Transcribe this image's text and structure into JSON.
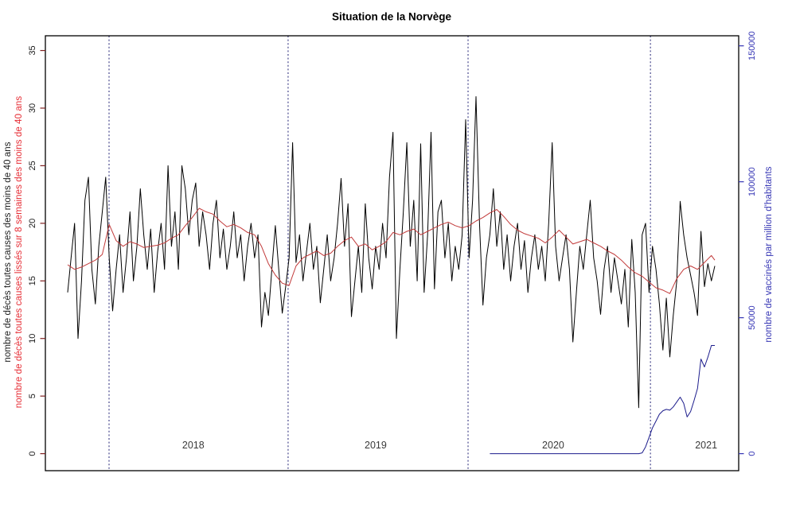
{
  "title": "Situation de la Norvège",
  "colors": {
    "deaths_line": "#000000",
    "smoothed_line": "#c23a3a",
    "smoothed_label": "#e62b33",
    "vaccinated_line": "#1c1c8c",
    "right_axis_text": "#3434b4",
    "left_tick_mark": "#7e2020",
    "year_line": "#232377",
    "year_label": "#3a3a3a",
    "frame": "#000000",
    "left_tick_text": "#1a1a1a"
  },
  "chart_data": {
    "type": "line",
    "title": "Situation de la Norvège",
    "x_unit": "semaine (oct. 2017 à mai 2021)",
    "grid": "off",
    "year_boundaries_weeks": [
      11.96,
      63.7,
      115.7,
      168.4
    ],
    "year_labels": [
      {
        "label": "2018",
        "week": 36.3
      },
      {
        "label": "2019",
        "week": 89.0
      },
      {
        "label": "2020",
        "week": 140.3
      },
      {
        "label": "2021",
        "week": 184.5
      }
    ],
    "left_axis": {
      "label_black": "nombre de décès toutes causes des moins de 40 ans",
      "label_red": "nombre de décès toutes causes lissés sur 8 semaines des moins de 40 ans",
      "ticks": [
        0,
        5,
        10,
        15,
        20,
        25,
        30,
        35
      ],
      "range": [
        0,
        36.28
      ]
    },
    "right_axis": {
      "label": "nombre de vaccinés par million d'habitants",
      "ticks": [
        0,
        50000,
        100000,
        150000
      ],
      "range": [
        0,
        153700
      ]
    },
    "series": [
      {
        "key": "deaths",
        "name": "nombre de décès toutes causes des moins de 40 ans",
        "axis": "left",
        "start_week": 0,
        "step": 1,
        "values": [
          14,
          17,
          20,
          10,
          15,
          22,
          24,
          16,
          13,
          18,
          21,
          24,
          17,
          12.4,
          16,
          19,
          14,
          17,
          21,
          15,
          18,
          23,
          19,
          16,
          19.5,
          14,
          17.5,
          20,
          16,
          25,
          18,
          21,
          16,
          25,
          23,
          19,
          22,
          23.5,
          18,
          21,
          19,
          16,
          20,
          22,
          17,
          19.5,
          16,
          18,
          21,
          17,
          19,
          15,
          18,
          20,
          17,
          19,
          11,
          14,
          12,
          16,
          19.8,
          16,
          12.2,
          14.5,
          17,
          27,
          16.6,
          19,
          15,
          17.5,
          20,
          16,
          18,
          13.1,
          16,
          19,
          15,
          17,
          20,
          23.9,
          18,
          21.7,
          11.9,
          15,
          18,
          14,
          21.7,
          17,
          14.3,
          18,
          16,
          20,
          17,
          24,
          27.9,
          10,
          16,
          21,
          27,
          18,
          22,
          15,
          26.9,
          14,
          19,
          27.9,
          14.3,
          21,
          22,
          17,
          20,
          15,
          18,
          16,
          19,
          29,
          17,
          22,
          31,
          20,
          12.9,
          17,
          19,
          23,
          18,
          21,
          16,
          19,
          15,
          18,
          20,
          16,
          18.5,
          14,
          17,
          19,
          16,
          18,
          15,
          20,
          27,
          18,
          15,
          17,
          19,
          16,
          9.7,
          14,
          18,
          16,
          19,
          22,
          17,
          15,
          12.1,
          16,
          18,
          14,
          17,
          15,
          13,
          16,
          11,
          18.6,
          14,
          4,
          19,
          20,
          14,
          18,
          16,
          13,
          9,
          13.5,
          8.4,
          12,
          15,
          21.9,
          19,
          17,
          15.5,
          14,
          12,
          19.3,
          14.5,
          16.5,
          15,
          16.3
        ]
      },
      {
        "key": "smoothed",
        "name": "nombre de décès toutes causes lissés sur 8 semaines des moins de 40 ans",
        "axis": "left",
        "x": [
          0,
          2,
          4,
          6,
          8,
          10,
          12,
          14,
          16,
          18,
          20,
          22,
          24,
          26,
          28,
          30,
          32,
          34,
          36,
          38,
          40,
          42,
          44,
          46,
          48,
          50,
          52,
          54,
          56,
          58,
          60,
          62,
          64,
          66,
          68,
          70,
          72,
          74,
          76,
          78,
          80,
          82,
          84,
          86,
          88,
          90,
          92,
          94,
          96,
          98,
          100,
          102,
          104,
          106,
          108,
          110,
          112,
          114,
          116,
          118,
          120,
          122,
          124,
          126,
          128,
          130,
          132,
          134,
          136,
          138,
          140,
          142,
          144,
          146,
          148,
          150,
          152,
          154,
          156,
          158,
          160,
          162,
          164,
          166,
          168,
          170,
          172,
          174,
          176,
          178,
          180,
          182,
          184,
          186,
          187
        ],
        "values": [
          16.4,
          16.0,
          16.2,
          16.5,
          16.8,
          17.3,
          19.9,
          18.5,
          18.0,
          18.4,
          18.2,
          17.9,
          18.0,
          18.1,
          18.3,
          18.7,
          19.0,
          19.8,
          20.5,
          21.3,
          21.0,
          20.8,
          20.2,
          19.7,
          19.9,
          19.6,
          19.2,
          19.0,
          18.0,
          16.5,
          15.5,
          14.8,
          14.6,
          16.3,
          17.0,
          17.3,
          17.6,
          17.2,
          17.4,
          18.0,
          18.5,
          18.8,
          18.0,
          18.2,
          17.7,
          18.0,
          18.4,
          19.2,
          19.0,
          19.3,
          19.5,
          19.0,
          19.3,
          19.6,
          19.9,
          20.1,
          19.8,
          19.6,
          19.8,
          20.2,
          20.5,
          20.9,
          21.2,
          20.6,
          19.9,
          19.4,
          19.1,
          18.9,
          18.7,
          18.3,
          18.8,
          19.4,
          18.8,
          18.2,
          18.4,
          18.6,
          18.3,
          18.0,
          17.6,
          17.3,
          16.8,
          16.2,
          15.7,
          15.4,
          14.9,
          14.4,
          14.2,
          13.9,
          15.2,
          16.0,
          16.3,
          16.0,
          16.6,
          17.2,
          16.8
        ]
      },
      {
        "key": "vaccinated",
        "name": "nombre de vaccinés par million d'habitants",
        "axis": "right",
        "start_week": 122,
        "step": 1,
        "values": [
          0,
          0,
          0,
          0,
          0,
          0,
          0,
          0,
          0,
          0,
          0,
          0,
          0,
          0,
          0,
          0,
          0,
          0,
          0,
          0,
          0,
          0,
          0,
          0,
          0,
          0,
          0,
          0,
          0,
          0,
          0,
          0,
          0,
          0,
          0,
          0,
          0,
          0,
          0,
          0,
          0,
          0,
          0,
          0,
          300,
          2500,
          6000,
          9500,
          12000,
          14500,
          15800,
          16300,
          16000,
          17200,
          19000,
          20800,
          18500,
          13500,
          15500,
          19500,
          24000,
          34800,
          31900,
          35500,
          39800,
          39800
        ]
      }
    ]
  }
}
